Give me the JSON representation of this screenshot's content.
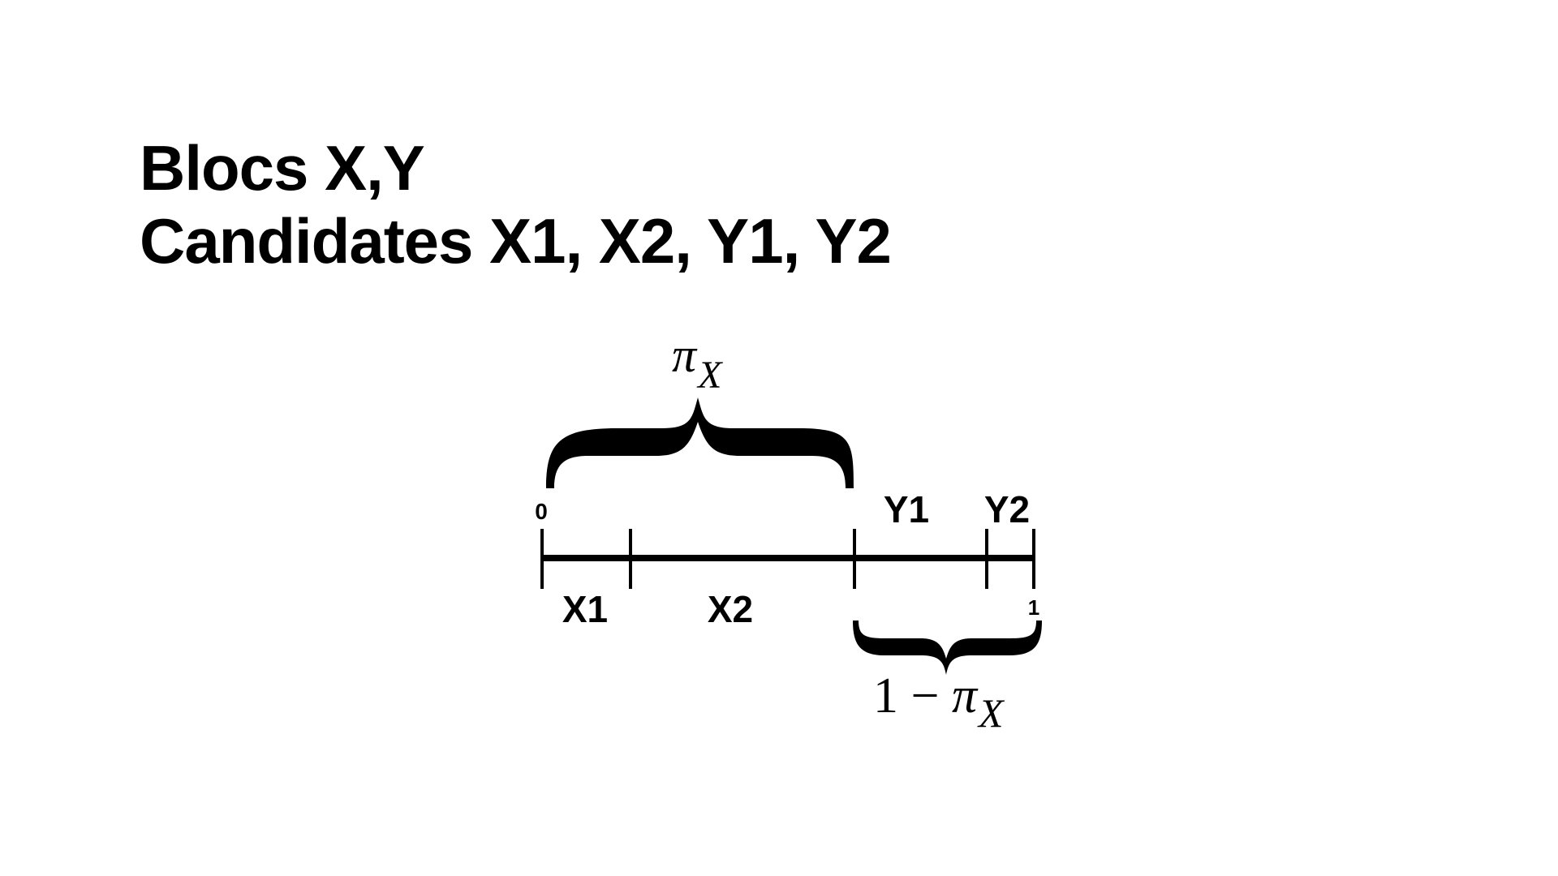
{
  "title": {
    "line1": "Blocs X,Y",
    "line2": "Candidates X1, X2, Y1, Y2"
  },
  "diagram": {
    "axis_start_label": "0",
    "axis_end_label": "1",
    "segments": [
      {
        "label": "X1",
        "start": 0.0,
        "end": 0.18
      },
      {
        "label": "X2",
        "start": 0.18,
        "end": 0.635
      },
      {
        "label": "Y1",
        "start": 0.635,
        "end": 0.905
      },
      {
        "label": "Y2",
        "start": 0.905,
        "end": 1.0
      }
    ],
    "upper_brace": {
      "symbol": "π",
      "subscript": "X"
    },
    "lower_brace": {
      "prefix": "1 − ",
      "symbol": "π",
      "subscript": "X"
    }
  }
}
